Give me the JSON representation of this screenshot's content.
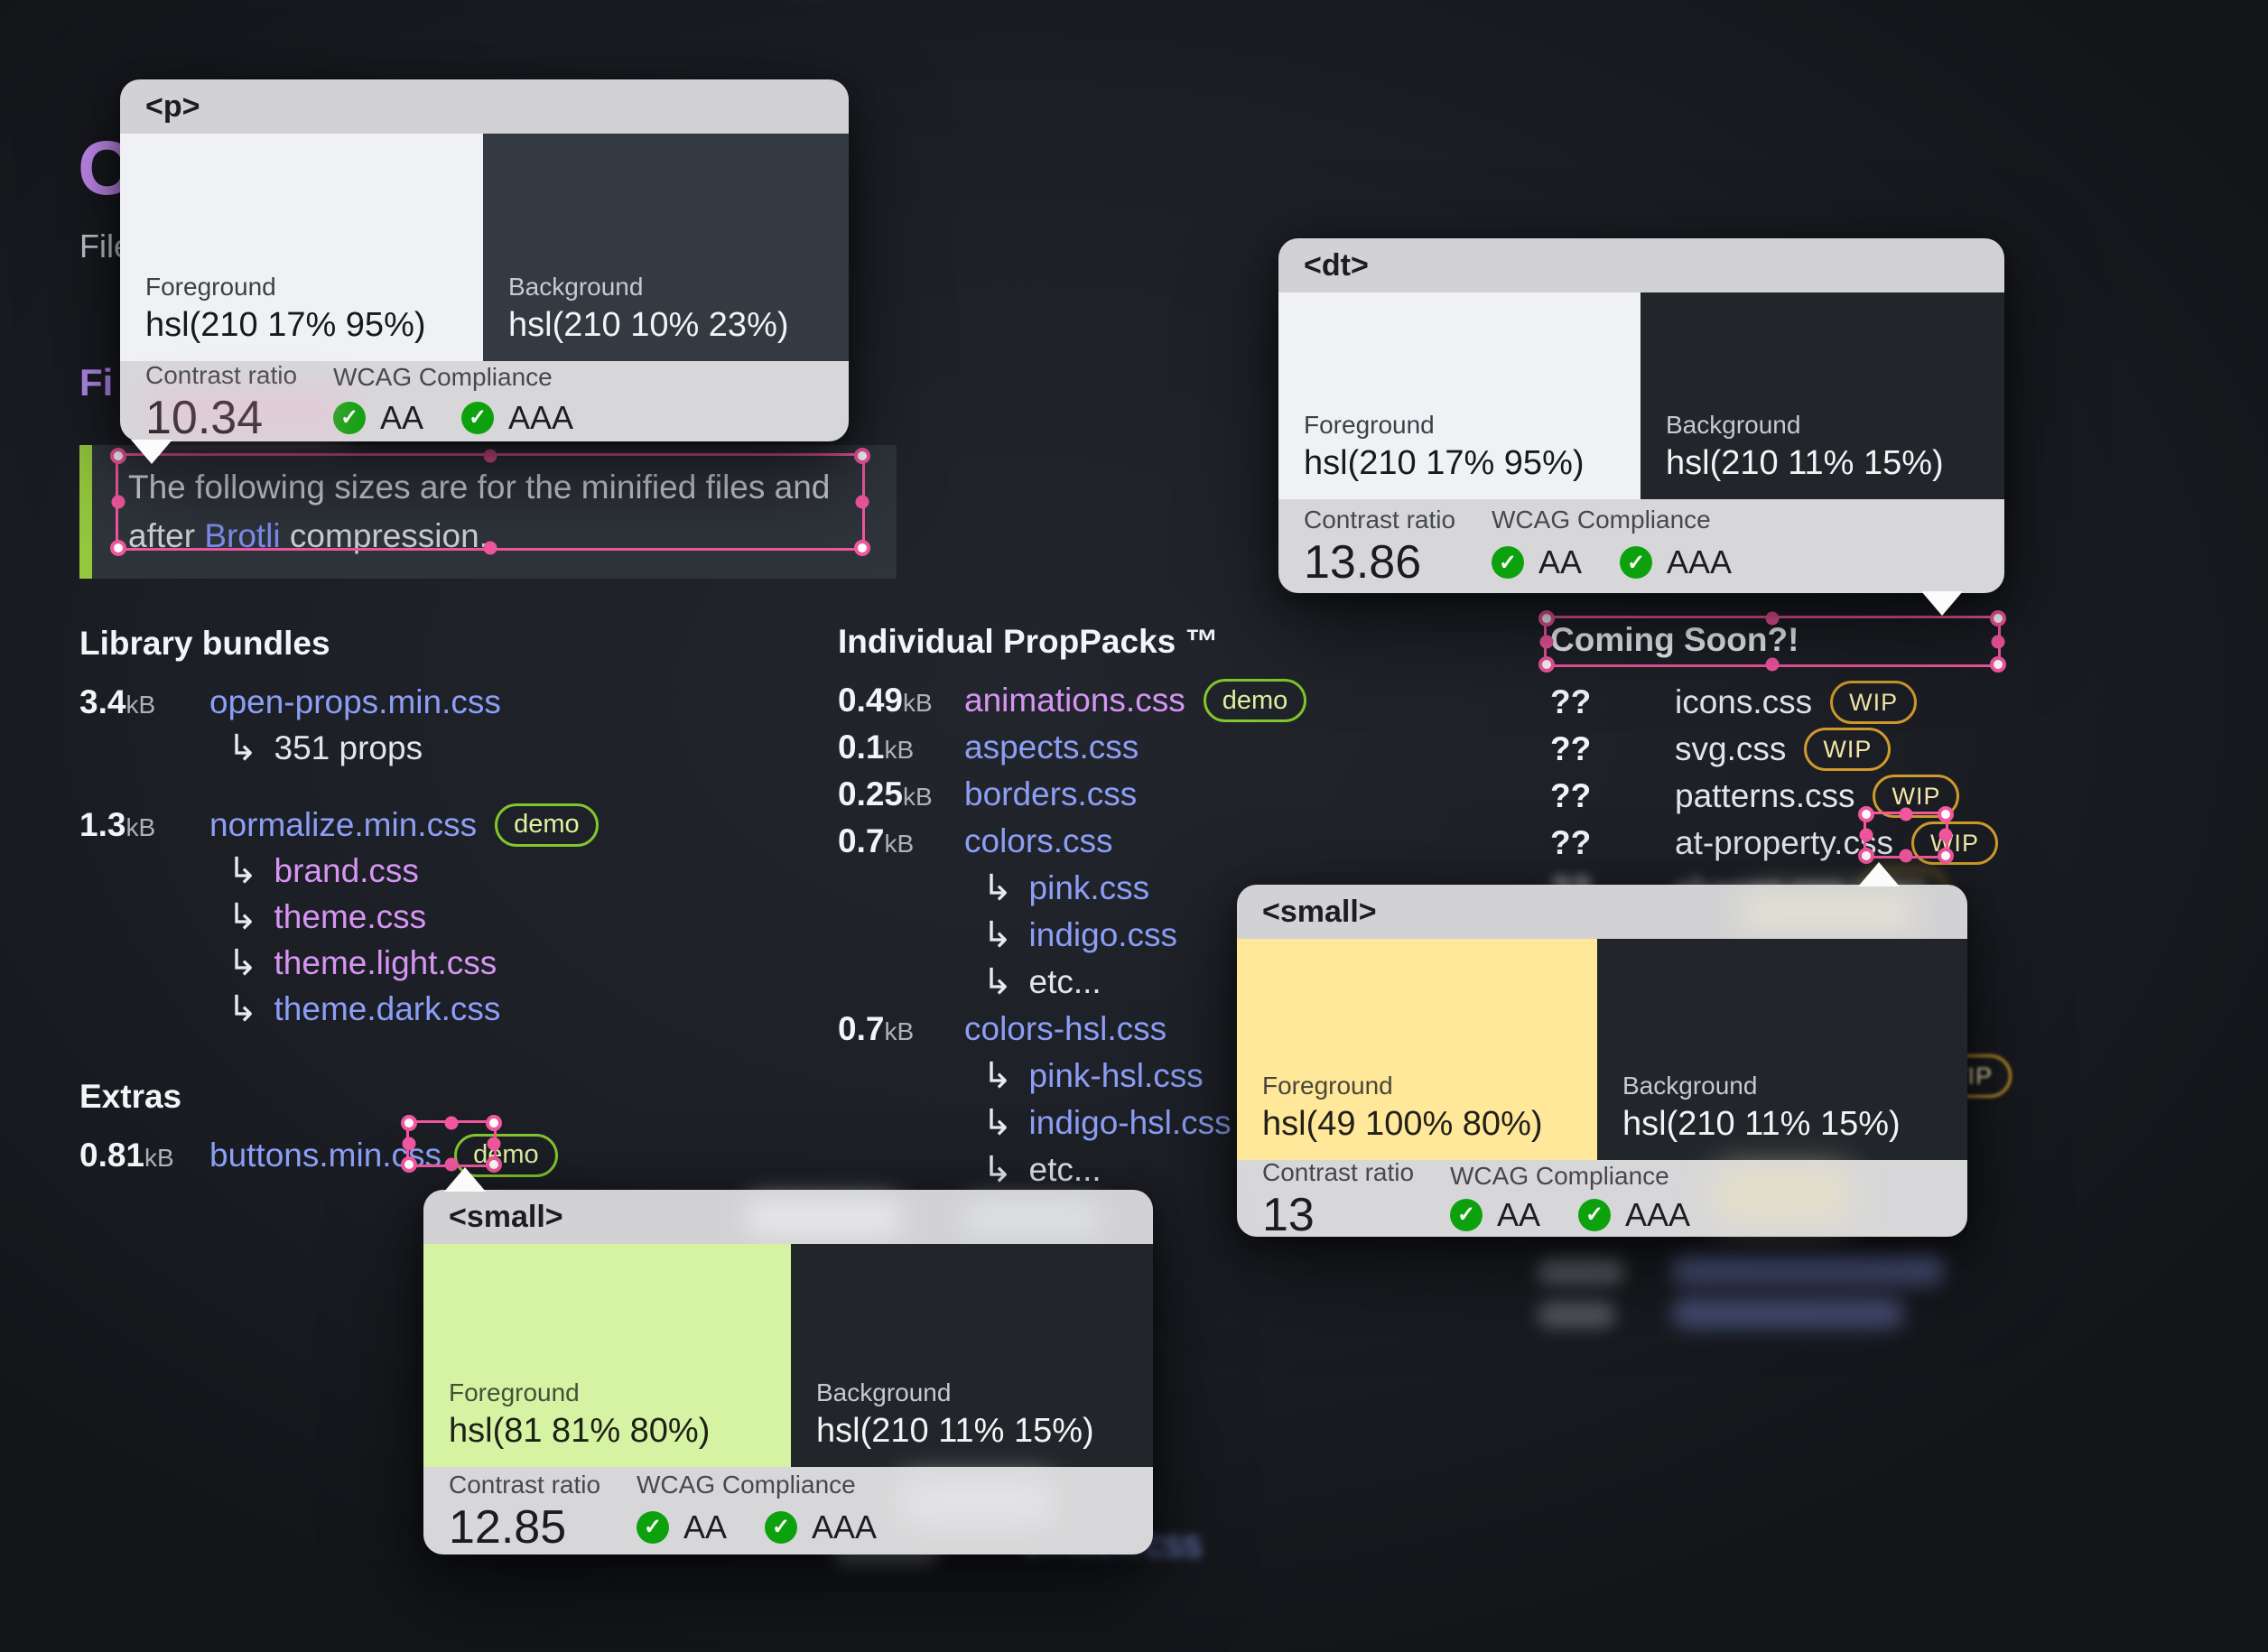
{
  "hero": {
    "title_clip": "O",
    "subtitle_clip": "File",
    "section_clip": "Fi"
  },
  "note": {
    "line1": "The following sizes are for the minified files and",
    "line2_pre": "after ",
    "link": "Brotli",
    "line2_post": " compression."
  },
  "library": {
    "heading": "Library bundles",
    "rows": [
      {
        "size": "3.4",
        "unit": "kB",
        "name": "open-props.min.css",
        "sub_plain": "351 props"
      },
      {
        "size": "1.3",
        "unit": "kB",
        "name": "normalize.min.css",
        "badge": "demo",
        "sub": [
          "brand.css",
          "theme.css",
          "theme.light.css",
          "theme.dark.css"
        ]
      }
    ]
  },
  "extras": {
    "heading": "Extras",
    "rows": [
      {
        "size": "0.81",
        "unit": "kB",
        "name": "buttons.min.css",
        "badge": "demo"
      }
    ]
  },
  "packs": {
    "heading": "Individual PropPacks ™",
    "rows": [
      {
        "size": "0.49",
        "unit": "kB",
        "name": "animations.css",
        "badge": "demo"
      },
      {
        "size": "0.1",
        "unit": "kB",
        "name": "aspects.css"
      },
      {
        "size": "0.25",
        "unit": "kB",
        "name": "borders.css"
      },
      {
        "size": "0.7",
        "unit": "kB",
        "name": "colors.css",
        "sub": [
          "pink.css",
          "indigo.css",
          "etc..."
        ]
      },
      {
        "size": "0.7",
        "unit": "kB",
        "name": "colors-hsl.css",
        "sub": [
          "pink-hsl.css",
          "indigo-hsl.css",
          "etc..."
        ]
      }
    ]
  },
  "coming": {
    "heading": "Coming Soon?!",
    "rows": [
      {
        "size": "??",
        "name": "icons.css",
        "badge": "WIP"
      },
      {
        "size": "??",
        "name": "svg.css",
        "badge": "WIP"
      },
      {
        "size": "??",
        "name": "patterns.css",
        "badge": "WIP"
      },
      {
        "size": "??",
        "name": "at-property.css",
        "badge": "WIP"
      },
      {
        "size": "??",
        "name": "shapes.css",
        "badge": "WIP"
      }
    ],
    "hidden_badge": "WIP"
  },
  "blur": {
    "zindex_link": "zindex.css"
  },
  "icons": {
    "hook": "↳",
    "check": "✓"
  },
  "tooltips": {
    "p": {
      "tag": "<p>",
      "fg_label": "Foreground",
      "fg_value": "hsl(210 17% 95%)",
      "fg_hex": "#eff1f4",
      "bg_label": "Background",
      "bg_value": "hsl(210 10% 23%)",
      "bg_hex": "#343a41",
      "ratio_label": "Contrast ratio",
      "ratio": "10.34",
      "wcag_label": "WCAG Compliance",
      "aa": "AA",
      "aaa": "AAA"
    },
    "dt": {
      "tag": "<dt>",
      "fg_label": "Foreground",
      "fg_value": "hsl(210 17% 95%)",
      "fg_hex": "#eff1f4",
      "bg_label": "Background",
      "bg_value": "hsl(210 11% 15%)",
      "bg_hex": "#22262b",
      "ratio_label": "Contrast ratio",
      "ratio": "13.86",
      "wcag_label": "WCAG Compliance",
      "aa": "AA",
      "aaa": "AAA"
    },
    "yellow": {
      "tag": "<small>",
      "fg_label": "Foreground",
      "fg_value": "hsl(49 100% 80%)",
      "fg_hex": "#ffe899",
      "bg_label": "Background",
      "bg_value": "hsl(210 11% 15%)",
      "bg_hex": "#22262b",
      "ratio_label": "Contrast ratio",
      "ratio": "13",
      "wcag_label": "WCAG Compliance",
      "aa": "AA",
      "aaa": "AAA"
    },
    "green": {
      "tag": "<small>",
      "fg_label": "Foreground",
      "fg_value": "hsl(81 81% 80%)",
      "fg_hex": "#d6f2a3",
      "bg_label": "Background",
      "bg_value": "hsl(210 11% 15%)",
      "bg_hex": "#22262b",
      "ratio_label": "Contrast ratio",
      "ratio": "12.85",
      "wcag_label": "WCAG Compliance",
      "aa": "AA",
      "aaa": "AAA"
    }
  },
  "colors": {
    "indigo_link": "#8c9ef6",
    "violet_link": "#d695f3",
    "demo_border": "#82c62d",
    "wip_border": "#cf9a2b",
    "selection_pink": "#f357a0",
    "check_green": "#0ea10e",
    "note_accent_green": "#94c83d",
    "heading_purple": "#c58cf3"
  }
}
